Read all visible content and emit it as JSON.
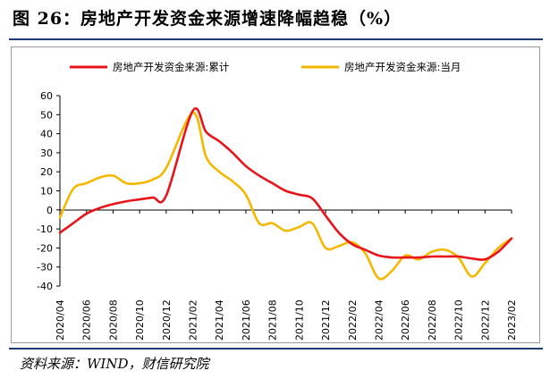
{
  "figure": {
    "title": "图 26：房地产开发资金来源增速降幅趋稳（%）",
    "source": "资料来源：WIND，财信研究院"
  },
  "colors": {
    "series_cumulative": "#e8141a",
    "series_monthly": "#f5b800",
    "axis": "#000000",
    "rule": "#1f3b73"
  },
  "chart_data": {
    "type": "line",
    "title": "",
    "xlabel": "",
    "ylabel": "",
    "ylim": [
      -40,
      60
    ],
    "yticks": [
      60,
      50,
      40,
      30,
      20,
      10,
      0,
      -10,
      -20,
      -30,
      -40
    ],
    "xtick_labels": [
      "2020/04",
      "2020/06",
      "2020/08",
      "2020/10",
      "2020/12",
      "2021/02",
      "2021/04",
      "2021/06",
      "2021/08",
      "2021/10",
      "2021/12",
      "2022/02",
      "2022/04",
      "2022/06",
      "2022/08",
      "2022/10",
      "2022/12",
      "2023/02"
    ],
    "legend": {
      "placement": "top"
    },
    "grid": false,
    "series": [
      {
        "name": "房地产开发资金来源:累计",
        "color_key": "series_cumulative",
        "points": [
          [
            "2020/04",
            -12
          ],
          [
            "2020/05",
            -7
          ],
          [
            "2020/06",
            -2
          ],
          [
            "2020/07",
            1
          ],
          [
            "2020/08",
            3
          ],
          [
            "2020/09",
            4.5
          ],
          [
            "2020/10",
            5.5
          ],
          [
            "2020/11",
            6.5
          ],
          [
            "2020/12",
            7.5
          ],
          [
            "2021/02",
            52
          ],
          [
            "2021/03",
            41
          ],
          [
            "2021/04",
            36
          ],
          [
            "2021/05",
            30
          ],
          [
            "2021/06",
            23
          ],
          [
            "2021/07",
            18
          ],
          [
            "2021/08",
            14
          ],
          [
            "2021/09",
            10
          ],
          [
            "2021/10",
            8
          ],
          [
            "2021/11",
            6
          ],
          [
            "2021/12",
            -3
          ],
          [
            "2022/01",
            -12
          ],
          [
            "2022/02",
            -18
          ],
          [
            "2022/03",
            -21
          ],
          [
            "2022/04",
            -24
          ],
          [
            "2022/05",
            -25
          ],
          [
            "2022/06",
            -25
          ],
          [
            "2022/07",
            -25
          ],
          [
            "2022/08",
            -24.5
          ],
          [
            "2022/09",
            -24.5
          ],
          [
            "2022/10",
            -24.5
          ],
          [
            "2022/11",
            -25.5
          ],
          [
            "2022/12",
            -26
          ],
          [
            "2023/01",
            -22
          ],
          [
            "2023/02",
            -15
          ]
        ]
      },
      {
        "name": "房地产开发资金来源:当月",
        "color_key": "series_monthly",
        "points": [
          [
            "2020/04",
            -4
          ],
          [
            "2020/05",
            11
          ],
          [
            "2020/06",
            14
          ],
          [
            "2020/07",
            17
          ],
          [
            "2020/08",
            18
          ],
          [
            "2020/09",
            14
          ],
          [
            "2020/10",
            14
          ],
          [
            "2020/11",
            16
          ],
          [
            "2020/12",
            22
          ],
          [
            "2021/02",
            51
          ],
          [
            "2021/03",
            28
          ],
          [
            "2021/04",
            20
          ],
          [
            "2021/05",
            15
          ],
          [
            "2021/06",
            8
          ],
          [
            "2021/07",
            -7
          ],
          [
            "2021/08",
            -7
          ],
          [
            "2021/09",
            -11
          ],
          [
            "2021/10",
            -9
          ],
          [
            "2021/11",
            -7
          ],
          [
            "2021/12",
            -20
          ],
          [
            "2022/01",
            -19
          ],
          [
            "2022/02",
            -17
          ],
          [
            "2022/03",
            -23
          ],
          [
            "2022/04",
            -36
          ],
          [
            "2022/05",
            -32
          ],
          [
            "2022/06",
            -24
          ],
          [
            "2022/07",
            -26
          ],
          [
            "2022/08",
            -22
          ],
          [
            "2022/09",
            -21
          ],
          [
            "2022/10",
            -25
          ],
          [
            "2022/11",
            -35
          ],
          [
            "2022/12",
            -28
          ],
          [
            "2023/01",
            -20
          ],
          [
            "2023/02",
            -15
          ]
        ]
      }
    ]
  }
}
